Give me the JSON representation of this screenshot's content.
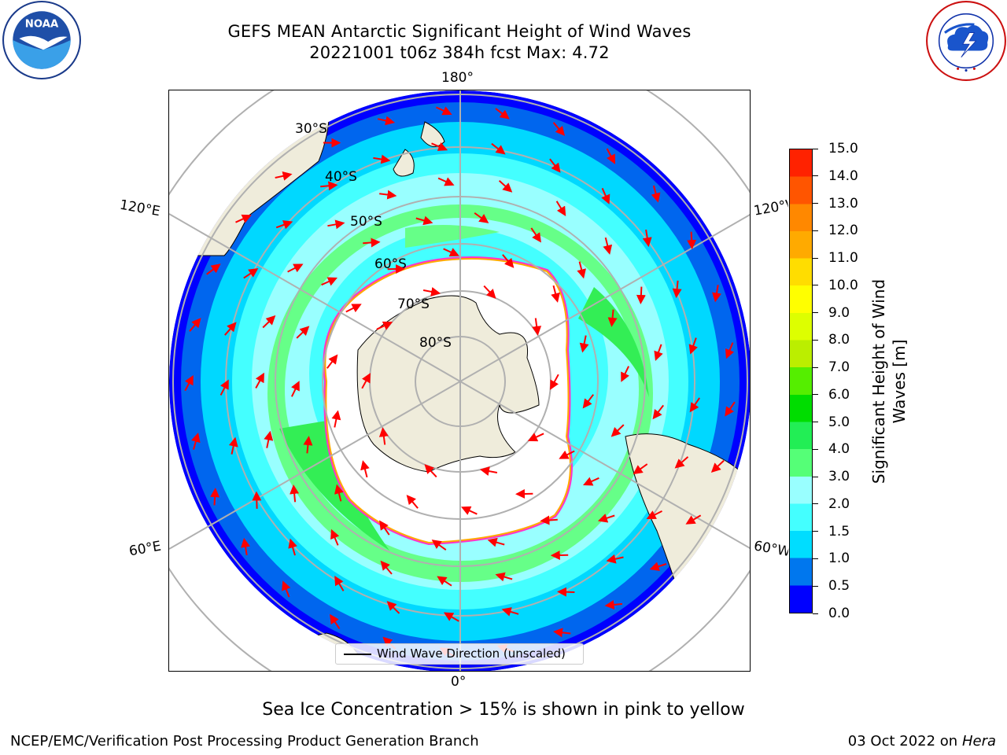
{
  "title": {
    "line1": "GEFS MEAN Antarctic Significant Height of Wind Waves",
    "line2": "20221001 t06z 384h fcst   Max: 4.72"
  },
  "logos": {
    "left": "NOAA",
    "right": "NATIONAL WEATHER SERVICE"
  },
  "map": {
    "projection": "south-polar-stereographic",
    "lon_labels": {
      "top": "180°",
      "bottom": "0°",
      "upper_left": "120°E",
      "lower_left": "60°E",
      "upper_right": "120°W",
      "lower_right": "60°W"
    },
    "lat_labels": [
      "30°S",
      "40°S",
      "50°S",
      "60°S",
      "70°S",
      "80°S"
    ],
    "land_color": "#efecdb",
    "grid_color": "#b0b0b0",
    "arrow_color": "#ff0000",
    "sea_ice_colors": [
      "#ff33cc",
      "#ffaa00",
      "#ffee44"
    ]
  },
  "colorbar": {
    "title": "Significant Height of Wind\nWaves [m]",
    "ticks": [
      "0.0",
      "0.5",
      "1.0",
      "1.5",
      "2.0",
      "3.0",
      "4.0",
      "5.0",
      "6.0",
      "7.0",
      "8.0",
      "9.0",
      "10.0",
      "11.0",
      "12.0",
      "13.0",
      "14.0",
      "15.0"
    ],
    "colors": [
      "#0000ff",
      "#0077ee",
      "#00ddff",
      "#44ffff",
      "#99ffff",
      "#55ff77",
      "#22ee55",
      "#00dd00",
      "#55ee00",
      "#bbee00",
      "#ddff00",
      "#ffff00",
      "#ffdd00",
      "#ffaa00",
      "#ff8800",
      "#ff5500",
      "#ff2200"
    ]
  },
  "legend": {
    "label": "Wind Wave Direction (unscaled)"
  },
  "notes": {
    "sea_ice": "Sea Ice Concentration > 15% is shown in pink to yellow",
    "footer_left": "NCEP/EMC/Verification Post Processing Product Generation Branch",
    "footer_date": "03 Oct 2022 on ",
    "footer_host": "Hera"
  }
}
